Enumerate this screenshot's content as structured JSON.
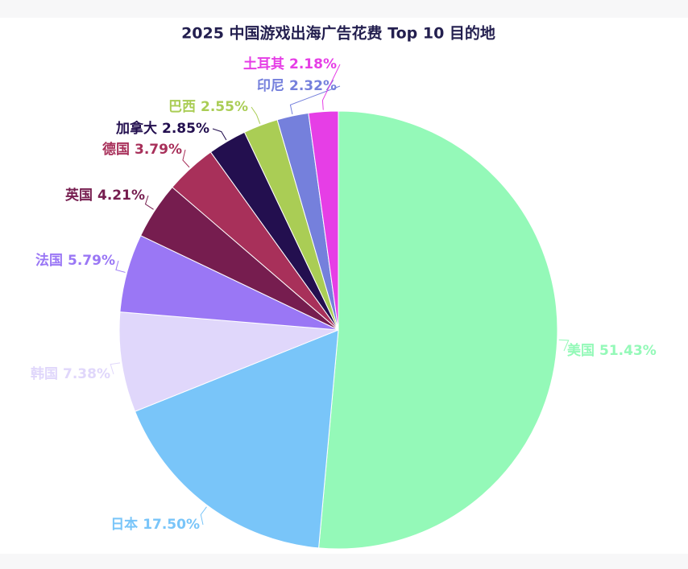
{
  "chart_data": {
    "type": "pie",
    "title": "2025 中国游戏出海广告花费 Top 10 目的地",
    "categories": [
      "美国",
      "日本",
      "韩国",
      "法国",
      "英国",
      "德国",
      "加拿大",
      "巴西",
      "印尼",
      "土耳其"
    ],
    "values": [
      51.43,
      17.5,
      7.38,
      5.79,
      4.21,
      3.79,
      2.85,
      2.55,
      2.32,
      2.18
    ],
    "value_labels": [
      "51.43%",
      "17.50%",
      "7.38%",
      "5.79%",
      "4.21%",
      "3.79%",
      "2.85%",
      "2.55%",
      "2.32%",
      "2.18%"
    ],
    "colors": [
      "#94f9b8",
      "#79c5f9",
      "#e0d7fb",
      "#9a77f5",
      "#761d4f",
      "#a8305a",
      "#230f4f",
      "#aacd55",
      "#7580dc",
      "#e63ee6"
    ]
  }
}
